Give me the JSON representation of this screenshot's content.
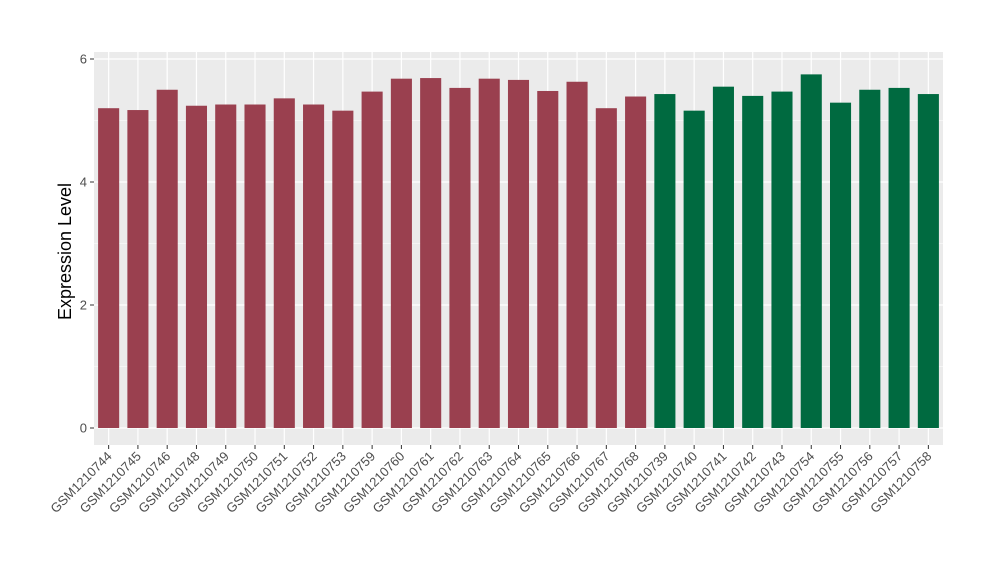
{
  "chart_data": {
    "type": "bar",
    "title": "",
    "xlabel": "",
    "ylabel": "Expression Level",
    "ylim": [
      0,
      6
    ],
    "yticks": [
      0,
      2,
      4,
      6
    ],
    "grid": true,
    "legend": "none",
    "colors": {
      "group1": "#9a404f",
      "group2": "#006a40",
      "panel": "#ebebeb",
      "grid": "#ffffff"
    },
    "categories": [
      "GSM1210744",
      "GSM1210745",
      "GSM1210746",
      "GSM1210748",
      "GSM1210749",
      "GSM1210750",
      "GSM1210751",
      "GSM1210752",
      "GSM1210753",
      "GSM1210759",
      "GSM1210760",
      "GSM1210761",
      "GSM1210762",
      "GSM1210763",
      "GSM1210764",
      "GSM1210765",
      "GSM1210766",
      "GSM1210767",
      "GSM1210768",
      "GSM1210739",
      "GSM1210740",
      "GSM1210741",
      "GSM1210742",
      "GSM1210743",
      "GSM1210754",
      "GSM1210755",
      "GSM1210756",
      "GSM1210757",
      "GSM1210758"
    ],
    "values": [
      5.2,
      5.17,
      5.5,
      5.24,
      5.26,
      5.26,
      5.36,
      5.26,
      5.16,
      5.47,
      5.68,
      5.69,
      5.53,
      5.68,
      5.66,
      5.48,
      5.63,
      5.2,
      5.39,
      5.43,
      5.16,
      5.55,
      5.4,
      5.47,
      5.75,
      5.29,
      5.5,
      5.53,
      5.43
    ],
    "group": [
      "group1",
      "group1",
      "group1",
      "group1",
      "group1",
      "group1",
      "group1",
      "group1",
      "group1",
      "group1",
      "group1",
      "group1",
      "group1",
      "group1",
      "group1",
      "group1",
      "group1",
      "group1",
      "group1",
      "group2",
      "group2",
      "group2",
      "group2",
      "group2",
      "group2",
      "group2",
      "group2",
      "group2",
      "group2"
    ]
  }
}
